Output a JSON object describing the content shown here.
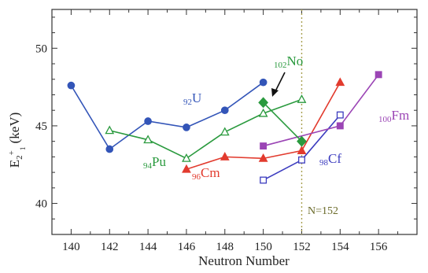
{
  "chart_data": {
    "type": "line",
    "xlabel": "Neutron Number",
    "ylabel": "E",
    "ylabel_sub": "2",
    "ylabel_sup": "+",
    "ylabel_sub2": "1",
    "ylabel_unit": " (keV)",
    "xlim": [
      139,
      158
    ],
    "ylim": [
      38,
      52.5
    ],
    "xticks": [
      140,
      142,
      144,
      146,
      148,
      150,
      152,
      154,
      156
    ],
    "yticks": [
      40,
      45,
      50
    ],
    "grid": false,
    "vline": {
      "x": 152,
      "label": "N=152",
      "color": "#a8a050"
    },
    "series": [
      {
        "name": "U",
        "prefix": "92",
        "color": "#3355b8",
        "marker": "circle",
        "filled": true,
        "x": [
          140,
          142,
          144,
          146,
          148,
          150
        ],
        "y": [
          47.6,
          43.5,
          45.3,
          44.9,
          46.0,
          47.8
        ]
      },
      {
        "name": "Pu",
        "prefix": "94",
        "color": "#2a9a3e",
        "marker": "triangle",
        "filled": false,
        "x": [
          142,
          144,
          146,
          148,
          150,
          152
        ],
        "y": [
          44.7,
          44.1,
          42.9,
          44.6,
          45.8,
          46.7
        ]
      },
      {
        "name": "Cm",
        "prefix": "96",
        "color": "#e23b2e",
        "marker": "triangle",
        "filled": true,
        "x": [
          146,
          148,
          150,
          152,
          154
        ],
        "y": [
          42.2,
          43.0,
          42.9,
          43.4,
          47.8
        ]
      },
      {
        "name": "Cf",
        "prefix": "98",
        "color": "#3c3cbf",
        "marker": "square",
        "filled": false,
        "x": [
          150,
          152,
          154
        ],
        "y": [
          41.5,
          42.8,
          45.7
        ]
      },
      {
        "name": "Fm",
        "prefix": "100",
        "color": "#9b45b5",
        "marker": "square",
        "filled": true,
        "x": [
          150,
          154,
          156
        ],
        "y": [
          43.7,
          45.0,
          48.3
        ]
      },
      {
        "name": "No",
        "prefix": "102",
        "color": "#2a9a3e",
        "marker": "diamond",
        "filled": true,
        "x": [
          150,
          152
        ],
        "y": [
          46.5,
          44.0
        ]
      }
    ]
  }
}
